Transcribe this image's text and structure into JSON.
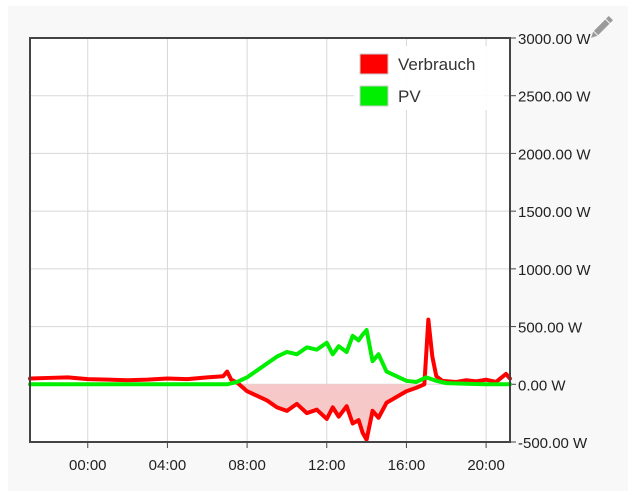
{
  "colors": {
    "consumption": "#ff0000",
    "consumption_fill": "#f6c8c8",
    "pv": "#00ee00",
    "grid": "#d8d8d8",
    "frame": "#444444",
    "edit_icon": "#9a9a9a"
  },
  "edit_icon": "pencil-icon",
  "chart_data": {
    "type": "line",
    "title": "",
    "xlabel": "",
    "ylabel": "",
    "x_ticks": [
      "00:00",
      "04:00",
      "08:00",
      "12:00",
      "16:00",
      "20:00"
    ],
    "y_ticks": [
      "3000.00 W",
      "2500.00 W",
      "2000.00 W",
      "1500.00 W",
      "1000.00 W",
      "500.00 W",
      "0.00 W",
      "-500.00 W"
    ],
    "ylim": [
      -500,
      3000
    ],
    "xlim_hours": [
      -2.9,
      21.2
    ],
    "grid": true,
    "legend_position": "top-right",
    "series": [
      {
        "name": "Verbrauch",
        "color": "#ff0000",
        "area_below_zero": true,
        "x": [
          -2.9,
          -2,
          -1,
          0,
          1,
          2,
          3,
          4,
          5,
          6,
          6.8,
          7.0,
          7.2,
          7.5,
          8,
          8.5,
          9,
          9.5,
          10,
          10.5,
          11,
          11.5,
          12,
          12.3,
          12.6,
          13,
          13.3,
          13.6,
          13.8,
          14,
          14.3,
          14.6,
          15,
          15.5,
          16,
          16.5,
          16.9,
          17.1,
          17.3,
          17.5,
          17.8,
          18.5,
          19,
          19.5,
          20,
          20.5,
          21,
          21.2
        ],
        "y": [
          50,
          55,
          60,
          45,
          40,
          35,
          40,
          50,
          45,
          60,
          70,
          110,
          40,
          15,
          -60,
          -100,
          -140,
          -200,
          -230,
          -170,
          -250,
          -220,
          -300,
          -200,
          -280,
          -190,
          -340,
          -310,
          -420,
          -480,
          -230,
          -290,
          -160,
          -110,
          -60,
          -30,
          0,
          560,
          240,
          70,
          30,
          20,
          35,
          25,
          40,
          20,
          90,
          50
        ]
      },
      {
        "name": "PV",
        "color": "#00ee00",
        "x": [
          -2.9,
          -2,
          -1,
          0,
          1,
          2,
          3,
          4,
          5,
          6,
          7,
          7.5,
          8,
          8.5,
          9,
          9.5,
          10,
          10.5,
          11,
          11.5,
          12,
          12.3,
          12.6,
          13,
          13.3,
          13.6,
          13.8,
          14,
          14.3,
          14.6,
          15,
          15.5,
          16,
          16.5,
          17,
          17.5,
          18,
          19,
          20,
          21.2
        ],
        "y": [
          0,
          0,
          0,
          0,
          0,
          0,
          0,
          0,
          0,
          0,
          0,
          20,
          60,
          120,
          180,
          240,
          280,
          260,
          320,
          300,
          360,
          260,
          330,
          280,
          420,
          380,
          430,
          470,
          200,
          260,
          110,
          70,
          30,
          20,
          60,
          30,
          10,
          5,
          0,
          0
        ]
      }
    ]
  }
}
